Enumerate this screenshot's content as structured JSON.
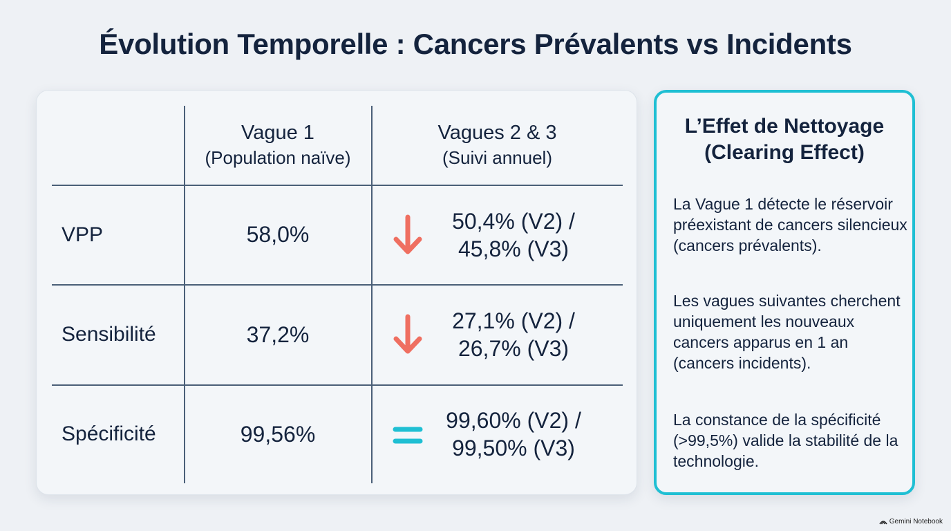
{
  "title": "Évolution Temporelle : Cancers Prévalents vs Incidents",
  "table": {
    "headers": [
      {
        "line1": "Vague 1",
        "line2": "(Population naïve)"
      },
      {
        "line1": "Vagues 2 & 3",
        "line2": "(Suivi annuel)"
      }
    ],
    "rows": [
      {
        "label": "VPP",
        "wave1": "58,0%",
        "wave23_line1": "50,4% (V2) /",
        "wave23_line2": "45,8% (V3)",
        "trend": "down-arrow-icon"
      },
      {
        "label": "Sensibilité",
        "wave1": "37,2%",
        "wave23_line1": "27,1% (V2) /",
        "wave23_line2": "26,7% (V3)",
        "trend": "down-arrow-icon"
      },
      {
        "label": "Spécificité",
        "wave1": "99,56%",
        "wave23_line1": "99,60% (V2) /",
        "wave23_line2": "99,50% (V3)",
        "trend": "equals-icon"
      }
    ]
  },
  "side": {
    "title_line1": "L’Effet de Nettoyage",
    "title_line2": "(Clearing Effect)",
    "p1": "La Vague 1 détecte le réservoir préexistant de cancers silencieux (cancers prévalents).",
    "p2": "Les vagues suivantes cherchent uniquement les nouveaux cancers apparus en 1 an (cancers incidents).",
    "p3": "La constance de la spécificité (>99,5%) valide la stabilité de la technologie."
  },
  "brand": "Gemini Notebook",
  "colors": {
    "accent": "#1fbfd3",
    "down_arrow": "#ef6f61",
    "equals": "#1fbfd3",
    "text": "#14233d"
  }
}
